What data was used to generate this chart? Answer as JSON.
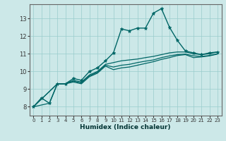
{
  "title": "",
  "xlabel": "Humidex (Indice chaleur)",
  "ylabel": "",
  "bg_color": "#cce8e8",
  "plot_bg_color": "#cce8e8",
  "grid_color": "#99cccc",
  "line_color": "#006666",
  "xlim": [
    -0.5,
    23.5
  ],
  "ylim": [
    7.5,
    13.8
  ],
  "xticks": [
    0,
    1,
    2,
    3,
    4,
    5,
    6,
    7,
    8,
    9,
    10,
    11,
    12,
    13,
    14,
    15,
    16,
    17,
    18,
    19,
    20,
    21,
    22,
    23
  ],
  "yticks": [
    8,
    9,
    10,
    11,
    12,
    13
  ],
  "series": [
    {
      "x": [
        0,
        1,
        2,
        3,
        4,
        5,
        6,
        7,
        8,
        9,
        10,
        11,
        12,
        13,
        14,
        15,
        16,
        17,
        18,
        19,
        20,
        21,
        22,
        23
      ],
      "y": [
        8.0,
        8.5,
        8.2,
        9.3,
        9.3,
        9.6,
        9.5,
        10.0,
        10.2,
        10.6,
        11.05,
        12.4,
        12.3,
        12.45,
        12.45,
        13.3,
        13.55,
        12.5,
        11.75,
        11.15,
        11.05,
        10.95,
        11.05,
        11.1
      ],
      "marker": "*",
      "markersize": 3.5,
      "linewidth": 1.0
    },
    {
      "x": [
        0,
        3,
        4,
        5,
        6,
        7,
        8,
        9,
        10,
        11,
        12,
        13,
        14,
        15,
        16,
        17,
        18,
        19,
        20,
        21,
        22,
        23
      ],
      "y": [
        8.0,
        9.3,
        9.3,
        9.5,
        9.4,
        9.8,
        10.0,
        10.4,
        10.5,
        10.6,
        10.65,
        10.7,
        10.78,
        10.85,
        10.95,
        11.05,
        11.1,
        11.1,
        11.0,
        10.95,
        11.0,
        11.1
      ],
      "marker": null,
      "markersize": 0,
      "linewidth": 0.9
    },
    {
      "x": [
        0,
        3,
        4,
        5,
        6,
        7,
        8,
        9,
        10,
        11,
        12,
        13,
        14,
        15,
        16,
        17,
        18,
        19,
        20,
        21,
        22,
        23
      ],
      "y": [
        8.0,
        9.3,
        9.3,
        9.45,
        9.35,
        9.75,
        9.95,
        10.35,
        10.25,
        10.35,
        10.4,
        10.5,
        10.58,
        10.65,
        10.78,
        10.88,
        10.95,
        10.98,
        10.88,
        10.85,
        10.9,
        11.0
      ],
      "marker": null,
      "markersize": 0,
      "linewidth": 0.9
    },
    {
      "x": [
        0,
        2,
        3,
        4,
        5,
        6,
        7,
        8,
        9,
        10,
        11,
        12,
        13,
        14,
        15,
        16,
        17,
        18,
        19,
        20,
        21,
        22,
        23
      ],
      "y": [
        8.0,
        8.2,
        9.3,
        9.3,
        9.4,
        9.3,
        9.7,
        9.9,
        10.3,
        10.1,
        10.2,
        10.25,
        10.35,
        10.45,
        10.55,
        10.68,
        10.78,
        10.9,
        10.95,
        10.78,
        10.82,
        10.88,
        10.98
      ],
      "marker": null,
      "markersize": 0,
      "linewidth": 0.9
    }
  ],
  "xlabel_fontsize": 6.5,
  "xlabel_color": "#003333",
  "tick_labelsize": 5.5,
  "tick_color": "#333333"
}
